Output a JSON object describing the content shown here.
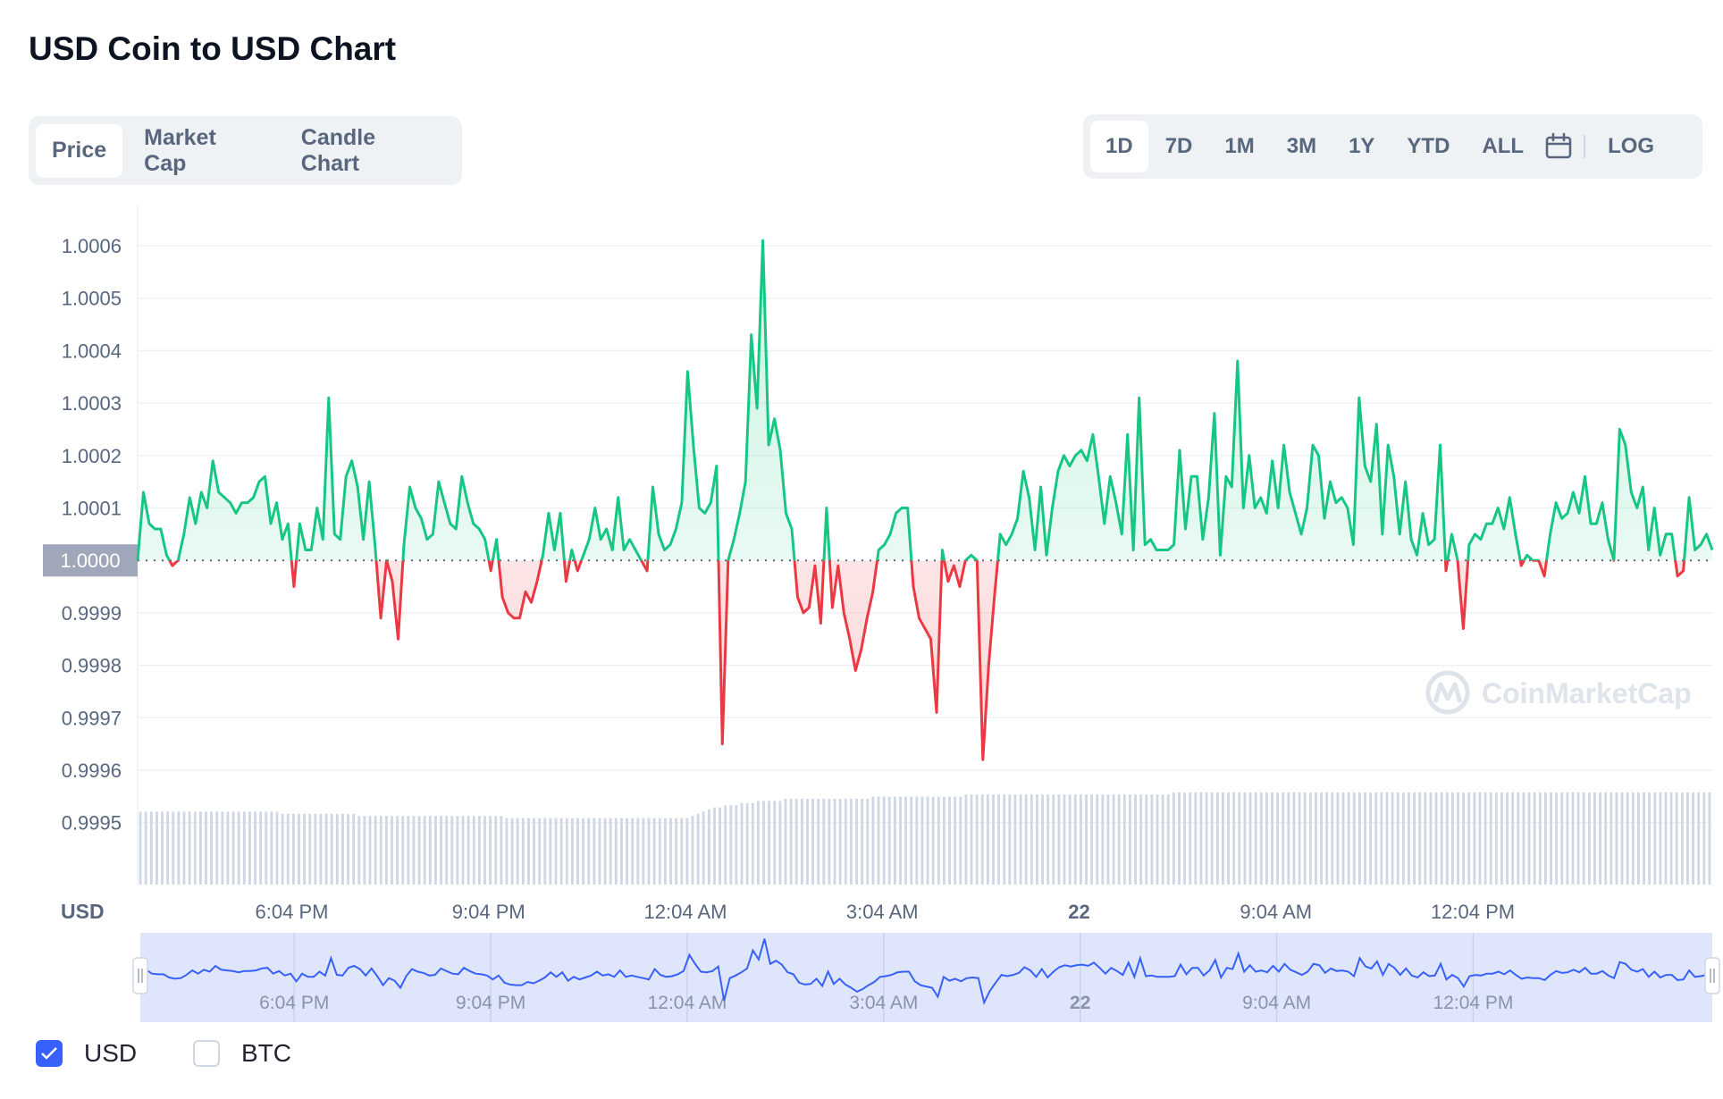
{
  "header": {
    "title": "USD Coin to USD Chart"
  },
  "tabs": [
    {
      "label": "Price",
      "active": true
    },
    {
      "label": "Market Cap",
      "active": false
    },
    {
      "label": "Candle Chart",
      "active": false
    }
  ],
  "ranges": [
    {
      "label": "1D",
      "active": true
    },
    {
      "label": "7D",
      "active": false
    },
    {
      "label": "1M",
      "active": false
    },
    {
      "label": "3M",
      "active": false
    },
    {
      "label": "1Y",
      "active": false
    },
    {
      "label": "YTD",
      "active": false
    },
    {
      "label": "ALL",
      "active": false
    }
  ],
  "calendar_icon": "calendar-icon",
  "log_label": "LOG",
  "legend": [
    {
      "label": "USD",
      "checked": true
    },
    {
      "label": "BTC",
      "checked": false
    }
  ],
  "colors": {
    "up": "#16c784",
    "down": "#ea3943",
    "accent": "#3861fb",
    "volume": "#cfd6e4",
    "baseline_badge": "#a1a7bb"
  },
  "watermark": "CoinMarketCap",
  "chart_data": {
    "type": "line",
    "baseline": 1.0,
    "baseline_label": "1.0000",
    "currency_label": "USD",
    "ylim": [
      0.99945,
      1.00065
    ],
    "y_ticks": [
      "1.0006",
      "1.0005",
      "1.0004",
      "1.0003",
      "1.0002",
      "1.0001",
      "0.9999",
      "0.9998",
      "0.9997",
      "0.9996",
      "0.9995"
    ],
    "x_ticks": [
      "6:04 PM",
      "9:04 PM",
      "12:04 AM",
      "3:04 AM",
      "22",
      "9:04 AM",
      "12:04 PM"
    ],
    "x_tick_positions_hours": [
      2.35,
      5.35,
      8.35,
      11.35,
      14.35,
      17.35,
      20.35
    ],
    "hours_span": 24,
    "series": [
      {
        "values": [
          1.0,
          1.00013,
          1.00007,
          1.00006,
          1.00006,
          1.00001,
          0.99999,
          1.0,
          1.00005,
          1.00012,
          1.00007,
          1.00013,
          1.0001,
          1.00019,
          1.00013,
          1.00012,
          1.00011,
          1.00009,
          1.00011,
          1.00011,
          1.00012,
          1.00015,
          1.00016,
          1.00007,
          1.00011,
          1.00004,
          1.00007,
          0.99995,
          1.00007,
          1.00002,
          1.00002,
          1.0001,
          1.00004,
          1.00031,
          1.00005,
          1.00004,
          1.00016,
          1.00019,
          1.00014,
          1.00004,
          1.00015,
          1.00003,
          0.99989,
          1.0,
          0.99996,
          0.99985,
          1.00003,
          1.00014,
          1.0001,
          1.00008,
          1.00004,
          1.00005,
          1.00015,
          1.00011,
          1.00007,
          1.00006,
          1.00016,
          1.00011,
          1.00007,
          1.00006,
          1.00004,
          0.99998,
          1.00004,
          0.99993,
          0.9999,
          0.99989,
          0.99989,
          0.99994,
          0.99992,
          0.99996,
          1.00001,
          1.00009,
          1.00002,
          1.00009,
          0.99996,
          1.00002,
          0.99998,
          1.00001,
          1.00004,
          1.0001,
          1.00004,
          1.00006,
          1.00002,
          1.00012,
          1.00002,
          1.00004,
          1.00002,
          1.0,
          0.99998,
          1.00014,
          1.00005,
          1.00002,
          1.00003,
          1.00006,
          1.00011,
          1.00036,
          1.00022,
          1.0001,
          1.00009,
          1.00011,
          1.00018,
          0.99965,
          1.0,
          1.00004,
          1.00009,
          1.00015,
          1.00043,
          1.00029,
          1.00061,
          1.00022,
          1.00027,
          1.00021,
          1.00009,
          1.00006,
          0.99993,
          0.9999,
          0.99991,
          0.99999,
          0.99988,
          1.0001,
          0.99991,
          0.99999,
          0.9999,
          0.99985,
          0.99979,
          0.99983,
          0.99989,
          0.99994,
          1.00002,
          1.00003,
          1.00005,
          1.00009,
          1.0001,
          1.0001,
          0.99995,
          0.99989,
          0.99987,
          0.99985,
          0.99971,
          1.00002,
          0.99996,
          0.99999,
          0.99995,
          1.0,
          1.00001,
          1.0,
          0.99962,
          0.9998,
          0.99993,
          1.00005,
          1.00003,
          1.00005,
          1.00008,
          1.00017,
          1.00012,
          1.00002,
          1.00014,
          1.00001,
          1.0001,
          1.00017,
          1.0002,
          1.00018,
          1.0002,
          1.00021,
          1.00019,
          1.00024,
          1.00016,
          1.00007,
          1.00016,
          1.00011,
          1.00005,
          1.00024,
          1.00002,
          1.00031,
          1.00003,
          1.00004,
          1.00002,
          1.00002,
          1.00002,
          1.00003,
          1.00021,
          1.00006,
          1.00016,
          1.00016,
          1.00004,
          1.00012,
          1.00028,
          1.00001,
          1.00016,
          1.00014,
          1.00038,
          1.0001,
          1.0002,
          1.0001,
          1.00012,
          1.00009,
          1.00019,
          1.0001,
          1.00022,
          1.00013,
          1.00009,
          1.00005,
          1.0001,
          1.00022,
          1.0002,
          1.00008,
          1.00015,
          1.00011,
          1.00012,
          1.0001,
          1.00003,
          1.00031,
          1.00018,
          1.00015,
          1.00026,
          1.00005,
          1.00022,
          1.00016,
          1.00005,
          1.00015,
          1.00004,
          1.00001,
          1.00009,
          1.00003,
          1.00004,
          1.00022,
          0.99998,
          1.00005,
          1.0,
          0.99987,
          1.00003,
          1.00005,
          1.00004,
          1.00007,
          1.00007,
          1.0001,
          1.00006,
          1.00012,
          1.00005,
          0.99999,
          1.00001,
          1.0,
          1.0,
          0.99997,
          1.00005,
          1.00011,
          1.00008,
          1.00009,
          1.00013,
          1.00009,
          1.00016,
          1.00007,
          1.00007,
          1.00011,
          1.00004,
          1.0,
          1.00025,
          1.00022,
          1.00013,
          1.0001,
          1.00014,
          1.00002,
          1.0001,
          1.00001,
          1.00005,
          1.00005,
          0.99997,
          0.99998,
          1.00012,
          1.00002,
          1.00003,
          1.00005,
          1.00002
        ]
      }
    ],
    "volume": [
      3.4,
      3.4,
      3.4,
      3.4,
      3.4,
      3.4,
      3.4,
      3.4,
      3.4,
      3.4,
      3.4,
      3.4,
      3.4,
      3.4,
      3.4,
      3.4,
      3.4,
      3.4,
      3.4,
      3.4,
      3.4,
      3.4,
      3.4,
      3.4,
      3.4,
      3.4,
      3.3,
      3.3,
      3.3,
      3.3,
      3.3,
      3.3,
      3.3,
      3.3,
      3.3,
      3.3,
      3.3,
      3.3,
      3.3,
      3.3,
      3.2,
      3.2,
      3.2,
      3.2,
      3.2,
      3.2,
      3.2,
      3.2,
      3.2,
      3.2,
      3.2,
      3.2,
      3.2,
      3.2,
      3.2,
      3.2,
      3.2,
      3.2,
      3.2,
      3.2,
      3.2,
      3.2,
      3.2,
      3.2,
      3.2,
      3.2,
      3.2,
      3.1,
      3.1,
      3.1,
      3.1,
      3.1,
      3.1,
      3.1,
      3.1,
      3.1,
      3.1,
      3.1,
      3.1,
      3.1,
      3.1,
      3.1,
      3.1,
      3.1,
      3.1,
      3.1,
      3.1,
      3.1,
      3.1,
      3.1,
      3.1,
      3.1,
      3.1,
      3.1,
      3.1,
      3.1,
      3.1,
      3.1,
      3.1,
      3.1,
      3.1,
      3.2,
      3.3,
      3.4,
      3.5,
      3.6,
      3.6,
      3.7,
      3.7,
      3.7,
      3.8,
      3.8,
      3.8,
      3.9,
      3.9,
      3.9,
      3.9,
      3.9,
      4.0,
      4.0,
      4.0,
      4.0,
      4.0,
      4.0,
      4.0,
      4.0,
      4.0,
      4.0,
      4.0,
      4.0,
      4.0,
      4.0,
      4.0,
      4.0,
      4.1,
      4.1,
      4.1,
      4.1,
      4.1,
      4.1,
      4.1,
      4.1,
      4.1,
      4.1,
      4.1,
      4.1,
      4.1,
      4.1,
      4.1,
      4.1,
      4.1,
      4.2,
      4.2,
      4.2,
      4.2,
      4.2,
      4.2,
      4.2,
      4.2,
      4.2,
      4.2,
      4.2,
      4.2,
      4.2,
      4.2,
      4.2,
      4.2,
      4.2,
      4.2,
      4.2,
      4.2,
      4.2,
      4.2,
      4.2,
      4.2,
      4.2,
      4.2,
      4.2,
      4.2,
      4.2,
      4.2,
      4.2,
      4.2,
      4.2,
      4.2,
      4.2,
      4.2,
      4.2,
      4.2,
      4.3,
      4.3,
      4.3,
      4.3,
      4.3,
      4.3,
      4.3,
      4.3,
      4.3,
      4.3,
      4.3,
      4.3,
      4.3,
      4.3,
      4.3,
      4.3,
      4.3,
      4.3,
      4.3,
      4.3,
      4.3,
      4.3,
      4.3,
      4.3,
      4.3,
      4.3,
      4.3,
      4.3,
      4.3,
      4.3,
      4.3,
      4.3,
      4.3,
      4.3,
      4.3,
      4.3,
      4.3,
      4.3,
      4.3,
      4.3,
      4.3,
      4.3,
      4.3,
      4.3,
      4.3,
      4.3,
      4.3,
      4.3,
      4.3,
      4.3,
      4.3,
      4.3,
      4.3,
      4.3,
      4.3,
      4.3,
      4.3,
      4.3,
      4.3,
      4.3,
      4.3,
      4.3,
      4.3,
      4.3,
      4.3,
      4.3,
      4.3,
      4.3,
      4.3,
      4.3,
      4.3,
      4.3,
      4.3,
      4.3,
      4.3,
      4.3,
      4.3,
      4.3,
      4.3,
      4.3,
      4.3,
      4.3,
      4.3,
      4.3,
      4.3,
      4.3,
      4.3,
      4.3,
      4.3,
      4.3,
      4.3,
      4.3,
      4.3,
      4.3,
      4.3,
      4.3,
      4.3,
      4.3,
      4.3
    ]
  }
}
